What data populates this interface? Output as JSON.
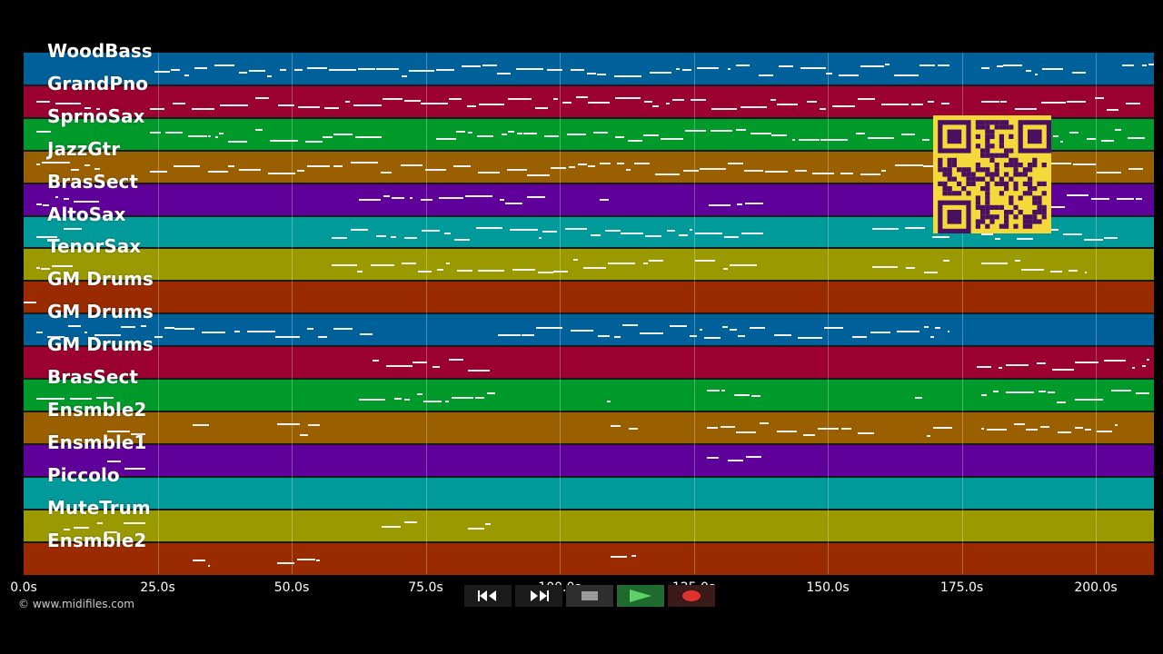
{
  "tracks": [
    {
      "label": "WoodBass",
      "color": "#00609a"
    },
    {
      "label": "GrandPno",
      "color": "#9a0030"
    },
    {
      "label": "SprnoSax",
      "color": "#009a2a"
    },
    {
      "label": "JazzGtr",
      "color": "#9a6000"
    },
    {
      "label": "BrasSect",
      "color": "#60009a"
    },
    {
      "label": "AltoSax",
      "color": "#009a9a"
    },
    {
      "label": "TenorSax",
      "color": "#9a9a00"
    },
    {
      "label": "GM Drums",
      "color": "#9a2a00"
    },
    {
      "label": "GM Drums",
      "color": "#00609a"
    },
    {
      "label": "GM Drums",
      "color": "#9a0030"
    },
    {
      "label": "BrasSect",
      "color": "#009a2a"
    },
    {
      "label": "Ensmble2",
      "color": "#9a6000"
    },
    {
      "label": "Ensmble1",
      "color": "#60009a"
    },
    {
      "label": "Piccolo",
      "color": "#009a9a"
    },
    {
      "label": "MuteTrum",
      "color": "#9a9a00"
    },
    {
      "label": "Ensmble2",
      "color": "#9a2a00"
    }
  ],
  "time_axis": {
    "ticks": [
      "0.0s",
      "25.0s",
      "50.0s",
      "75.0s",
      "100.0s",
      "125.0s",
      "150.0s",
      "175.0s",
      "200.0s"
    ],
    "max_seconds": 211.3
  },
  "copyright": "© www.midifiles.com",
  "transport": {
    "rewind_icon": "rewind-icon",
    "forward_icon": "fast-forward-icon",
    "stop_icon": "stop-icon",
    "play_icon": "play-icon",
    "record_icon": "record-icon"
  },
  "qr_icon": "qr-code-icon"
}
